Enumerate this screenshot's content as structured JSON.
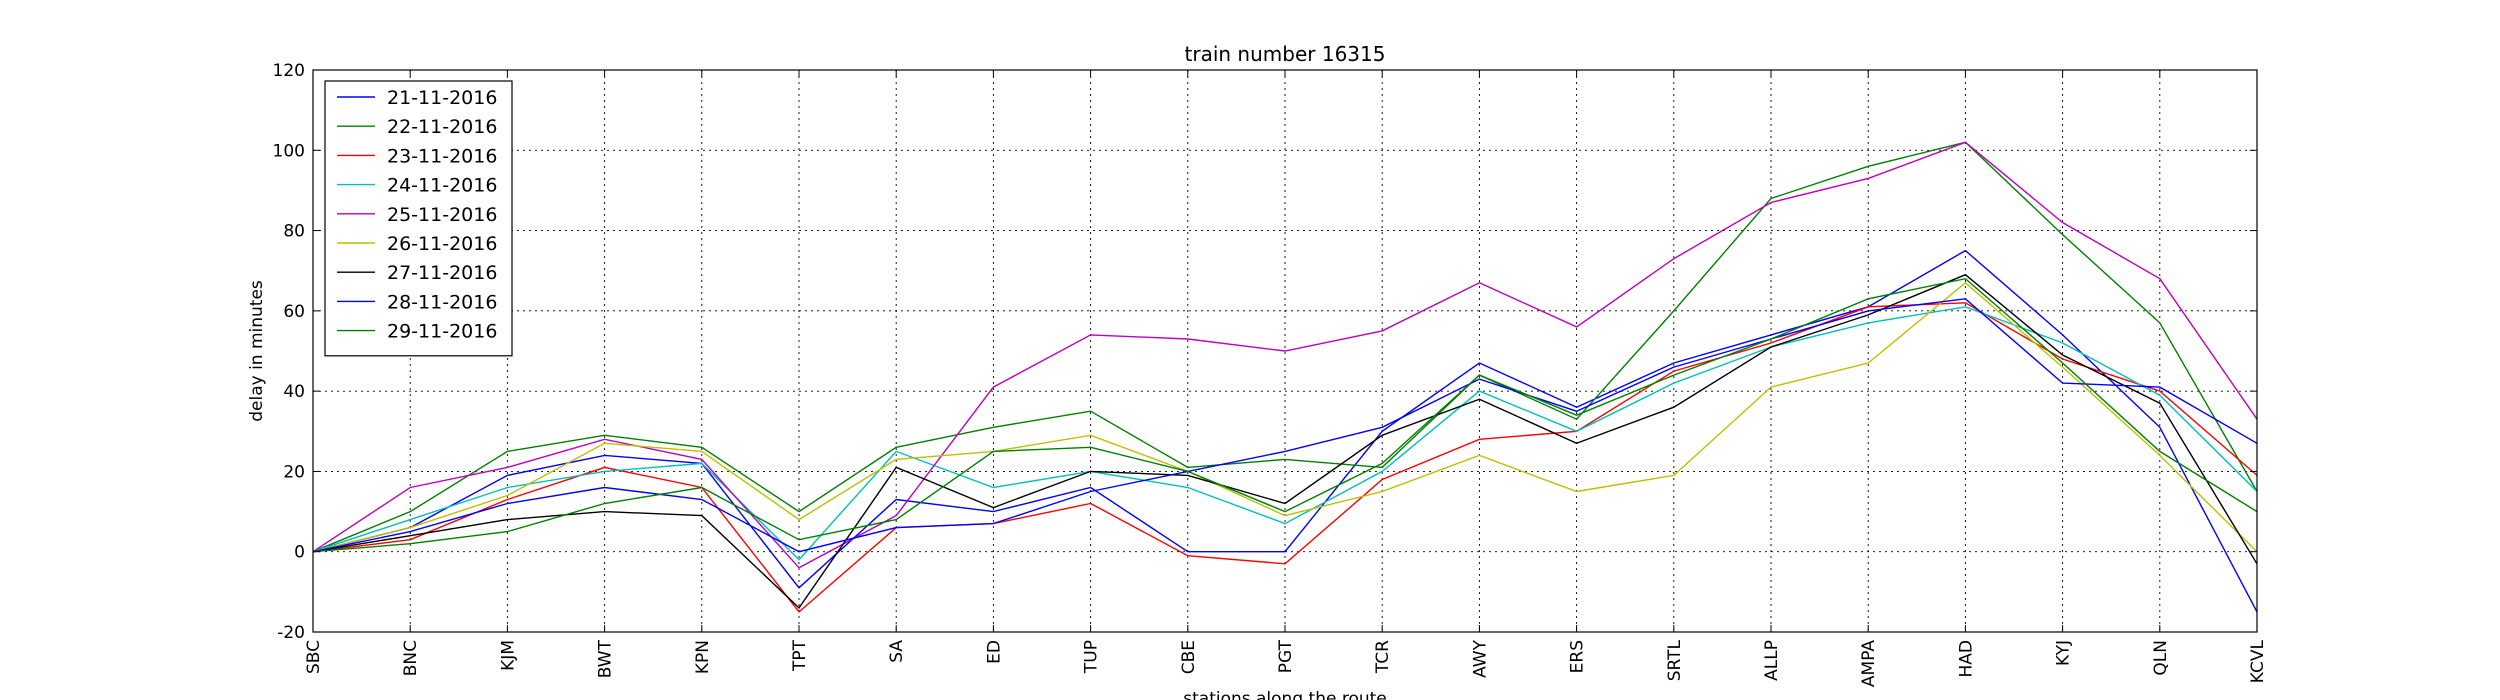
{
  "chart_data": {
    "type": "line",
    "title": "train number 16315",
    "xlabel": "stations along the route",
    "ylabel": "delay in minutes",
    "ylim": [
      -20,
      120
    ],
    "yticks": [
      -20,
      0,
      20,
      40,
      60,
      80,
      100,
      120
    ],
    "grid": true,
    "legend_position": "top-left",
    "categories": [
      "SBC",
      "BNC",
      "KJM",
      "BWT",
      "KPN",
      "TPT",
      "SA",
      "ED",
      "TUP",
      "CBE",
      "PGT",
      "TCR",
      "AWY",
      "ERS",
      "SRTL",
      "ALLP",
      "AMPA",
      "HAD",
      "KYJ",
      "QLN",
      "KCVL"
    ],
    "series": [
      {
        "name": "21-11-2016",
        "color": "#0000ff",
        "values": [
          0,
          6,
          19,
          24,
          22,
          -9,
          13,
          10,
          16,
          0,
          0,
          30,
          47,
          36,
          47,
          54,
          61,
          75,
          54,
          31,
          -15
        ]
      },
      {
        "name": "22-11-2016",
        "color": "#008000",
        "values": [
          0,
          10,
          25,
          29,
          26,
          10,
          26,
          31,
          35,
          21,
          23,
          21,
          44,
          33,
          60,
          88,
          96,
          102,
          79,
          57,
          15
        ]
      },
      {
        "name": "23-11-2016",
        "color": "#ff0000",
        "values": [
          0,
          3,
          13,
          21,
          16,
          -15,
          6,
          7,
          12,
          -1,
          -3,
          18,
          28,
          30,
          45,
          52,
          61,
          62,
          48,
          40,
          19
        ]
      },
      {
        "name": "24-11-2016",
        "color": "#00bfbf",
        "values": [
          0,
          8,
          16,
          20,
          22,
          -2,
          25,
          16,
          20,
          16,
          7,
          20,
          40,
          30,
          42,
          51,
          57,
          61,
          52,
          39,
          15
        ]
      },
      {
        "name": "25-11-2016",
        "color": "#bf00bf",
        "values": [
          0,
          16,
          21,
          28,
          23,
          -4,
          9,
          41,
          54,
          53,
          50,
          55,
          67,
          56,
          73,
          87,
          93,
          102,
          82,
          68,
          33
        ]
      },
      {
        "name": "26-11-2016",
        "color": "#bfbf00",
        "values": [
          0,
          6,
          14,
          27,
          25,
          8,
          23,
          25,
          29,
          20,
          9,
          15,
          24,
          15,
          19,
          41,
          47,
          67,
          46,
          24,
          0
        ]
      },
      {
        "name": "27-11-2016",
        "color": "#000000",
        "values": [
          0,
          4,
          8,
          10,
          9,
          -14,
          21,
          11,
          20,
          19,
          12,
          29,
          38,
          27,
          36,
          51,
          59,
          69,
          49,
          37,
          -3
        ]
      },
      {
        "name": "28-11-2016",
        "color": "#0000ff",
        "values": [
          0,
          5,
          12,
          16,
          13,
          0,
          6,
          7,
          15,
          20,
          25,
          31,
          43,
          35,
          46,
          53,
          60,
          63,
          42,
          41,
          27
        ]
      },
      {
        "name": "29-11-2016",
        "color": "#008000",
        "values": [
          0,
          2,
          5,
          12,
          16,
          3,
          8,
          25,
          26,
          20,
          10,
          22,
          44,
          34,
          44,
          53,
          63,
          68,
          47,
          25,
          10
        ]
      }
    ]
  }
}
